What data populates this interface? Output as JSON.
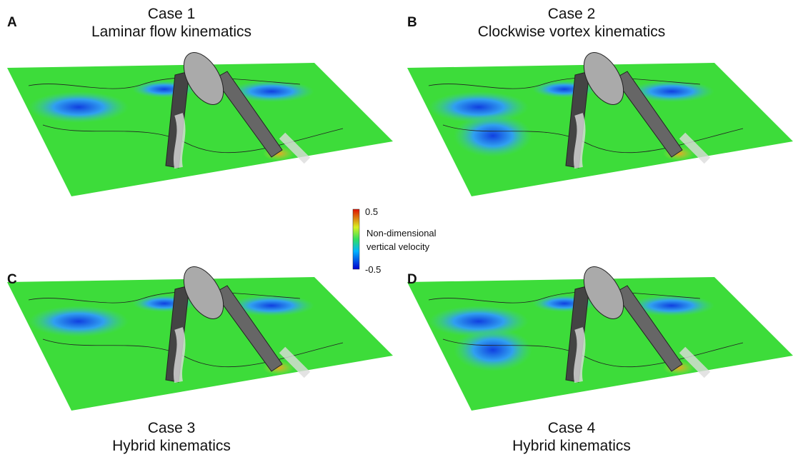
{
  "panels": [
    {
      "letter": "A",
      "case": "Case 1",
      "subtitle": "Laminar flow kinematics"
    },
    {
      "letter": "B",
      "case": "Case 2",
      "subtitle": "Clockwise vortex kinematics"
    },
    {
      "letter": "C",
      "case": "Case 3",
      "subtitle": "Hybrid kinematics"
    },
    {
      "letter": "D",
      "case": "Case 4",
      "subtitle": "Hybrid kinematics"
    }
  ],
  "colorbar": {
    "max": 0.5,
    "min": -0.5,
    "label_lines": [
      "Non-dimensional",
      "vertical velocity"
    ]
  }
}
